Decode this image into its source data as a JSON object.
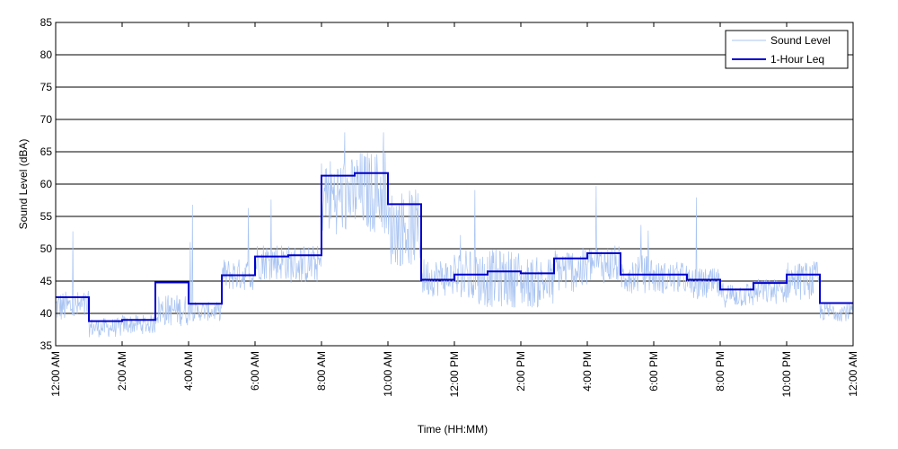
{
  "chart_data": {
    "type": "line",
    "title": "",
    "xlabel": "Time (HH:MM)",
    "ylabel": "Sound Level (dBA)",
    "ylim": [
      35,
      85
    ],
    "xlim_hours": [
      0,
      24
    ],
    "y_ticks": [
      "35",
      "40",
      "45",
      "50",
      "55",
      "60",
      "65",
      "70",
      "75",
      "80",
      "85"
    ],
    "x_ticks": [
      {
        "hour": 0,
        "label": "12:00 AM"
      },
      {
        "hour": 2,
        "label": "2:00 AM"
      },
      {
        "hour": 4,
        "label": "4:00 AM"
      },
      {
        "hour": 6,
        "label": "6:00 AM"
      },
      {
        "hour": 8,
        "label": "8:00 AM"
      },
      {
        "hour": 10,
        "label": "10:00 AM"
      },
      {
        "hour": 12,
        "label": "12:00 PM"
      },
      {
        "hour": 14,
        "label": "2:00 PM"
      },
      {
        "hour": 16,
        "label": "4:00 PM"
      },
      {
        "hour": 18,
        "label": "6:00 PM"
      },
      {
        "hour": 20,
        "label": "8:00 PM"
      },
      {
        "hour": 22,
        "label": "10:00 PM"
      },
      {
        "hour": 24,
        "label": "12:00 AM"
      }
    ],
    "grid": "horizontal",
    "legend_position": "top-right",
    "series": [
      {
        "name": "Sound Level",
        "color": "#a9c4f2",
        "kind": "noisy-line",
        "hourly_base": [
          40.5,
          37.5,
          38.0,
          40.0,
          40.0,
          45.5,
          47.5,
          47.0,
          57.0,
          57.5,
          52.0,
          45.0,
          44.5,
          44.5,
          44.0,
          46.0,
          47.0,
          45.5,
          45.0,
          44.0,
          42.5,
          43.0,
          44.5,
          40.0
        ],
        "hourly_spread": [
          2.5,
          1.5,
          1.5,
          2.5,
          1.5,
          2.5,
          3.0,
          3.0,
          6.0,
          6.5,
          6.0,
          3.0,
          4.5,
          4.5,
          4.0,
          3.5,
          3.0,
          3.0,
          2.5,
          2.5,
          2.0,
          2.0,
          3.0,
          1.5
        ]
      },
      {
        "name": "1-Hour Leq",
        "color": "#0000cc",
        "kind": "step",
        "hours": [
          0,
          1,
          2,
          3,
          4,
          5,
          6,
          7,
          8,
          9,
          10,
          11,
          12,
          13,
          14,
          15,
          16,
          17,
          18,
          19,
          20,
          21,
          22,
          23
        ],
        "values": [
          42.5,
          38.8,
          39.0,
          44.8,
          41.5,
          45.9,
          48.8,
          49.0,
          61.3,
          61.7,
          56.9,
          45.2,
          46.0,
          46.5,
          46.2,
          48.5,
          49.3,
          46.0,
          46.0,
          45.2,
          43.7,
          44.7,
          46.0,
          41.6
        ]
      }
    ]
  }
}
